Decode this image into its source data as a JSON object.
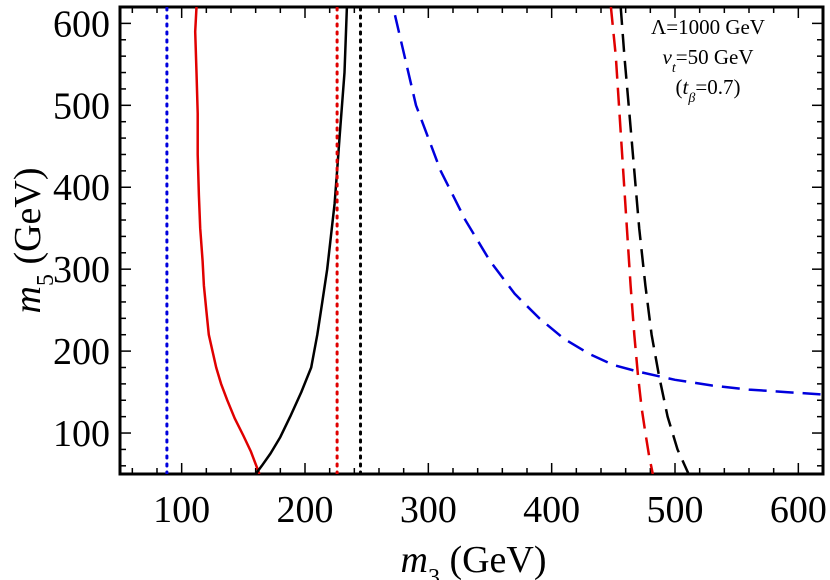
{
  "chart_data": {
    "type": "line",
    "title": "",
    "xlabel": "m3 (GeV)",
    "ylabel": "m5 (GeV)",
    "xlabel_parts": {
      "var": "m",
      "sub": "3",
      "unit": " (GeV)"
    },
    "ylabel_parts": {
      "var": "m",
      "sub": "5",
      "unit": " (GeV)"
    },
    "xlim": [
      50,
      620
    ],
    "ylim": [
      50,
      620
    ],
    "xticks": [
      100,
      200,
      300,
      400,
      500,
      600
    ],
    "yticks": [
      100,
      200,
      300,
      400,
      500,
      600
    ],
    "annotations": [
      {
        "text": "Λ=1000 GeV"
      },
      {
        "var": "v",
        "sub": "t",
        "rest": "=50 GeV"
      },
      {
        "pre": "(",
        "var": "t",
        "sub": "β",
        "rest": "=0.7)"
      }
    ],
    "series": [
      {
        "name": "red-solid",
        "color": "#e00000",
        "style": "solid",
        "x": [
          112,
          111,
          112,
          113,
          113,
          114,
          115,
          117,
          118,
          120,
          122,
          125,
          128,
          132,
          137,
          143,
          150,
          156,
          160,
          163
        ],
        "y": [
          620,
          590,
          540,
          490,
          440,
          390,
          350,
          310,
          280,
          250,
          220,
          200,
          180,
          160,
          140,
          118,
          97,
          78,
          62,
          50
        ]
      },
      {
        "name": "black-solid",
        "color": "#000000",
        "style": "solid",
        "x": [
          160,
          165,
          172,
          180,
          188,
          197,
          205,
          210,
          214,
          218,
          221,
          224,
          226,
          228,
          230,
          232,
          233,
          234
        ],
        "y": [
          50,
          60,
          75,
          95,
          120,
          150,
          180,
          220,
          260,
          300,
          340,
          380,
          420,
          460,
          500,
          540,
          580,
          620
        ]
      },
      {
        "name": "blue-dashed",
        "color": "#0000dd",
        "style": "dashed",
        "x": [
          273,
          290,
          310,
          330,
          350,
          370,
          390,
          410,
          430,
          450,
          470,
          500,
          530,
          560,
          590,
          620
        ],
        "y": [
          610,
          500,
          420,
          360,
          310,
          270,
          240,
          215,
          197,
          183,
          175,
          165,
          158,
          153,
          150,
          147
        ]
      },
      {
        "name": "red-dashed",
        "color": "#e00000",
        "style": "dashed",
        "x": [
          448,
          452,
          455,
          458,
          461,
          464,
          467,
          470,
          473,
          476,
          479,
          482
        ],
        "y": [
          620,
          560,
          490,
          420,
          350,
          280,
          220,
          170,
          130,
          100,
          72,
          50
        ]
      },
      {
        "name": "black-dashed",
        "color": "#000000",
        "style": "dashed",
        "x": [
          456,
          459,
          463,
          467,
          471,
          476,
          481,
          487,
          494,
          502,
          511
        ],
        "y": [
          620,
          560,
          490,
          420,
          350,
          280,
          220,
          170,
          120,
          80,
          50
        ]
      },
      {
        "name": "blue-dotted",
        "color": "#0000dd",
        "style": "dotted",
        "x": [
          88,
          88
        ],
        "y": [
          50,
          620
        ]
      },
      {
        "name": "red-dotted",
        "color": "#e00000",
        "style": "dotted",
        "x": [
          226,
          226
        ],
        "y": [
          50,
          620
        ]
      },
      {
        "name": "black-dotted",
        "color": "#000000",
        "style": "dotted",
        "x": [
          245,
          245
        ],
        "y": [
          50,
          620
        ]
      }
    ]
  }
}
